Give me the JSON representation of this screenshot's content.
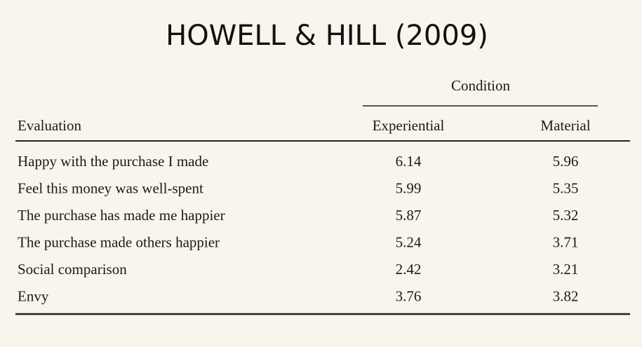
{
  "title": "HOWELL & HILL (2009)",
  "table": {
    "group_header": "Condition",
    "columns": [
      "Evaluation",
      "Experiential",
      "Material"
    ],
    "rows": [
      [
        "Happy with the purchase I made",
        "6.14",
        "5.96"
      ],
      [
        "Feel this money was well-spent",
        "5.99",
        "5.35"
      ],
      [
        "The purchase has made me happier",
        "5.87",
        "5.32"
      ],
      [
        "The purchase made others happier",
        "5.24",
        "3.71"
      ],
      [
        "Social comparison",
        "2.42",
        "3.21"
      ],
      [
        "Envy",
        "3.76",
        "3.82"
      ]
    ]
  }
}
